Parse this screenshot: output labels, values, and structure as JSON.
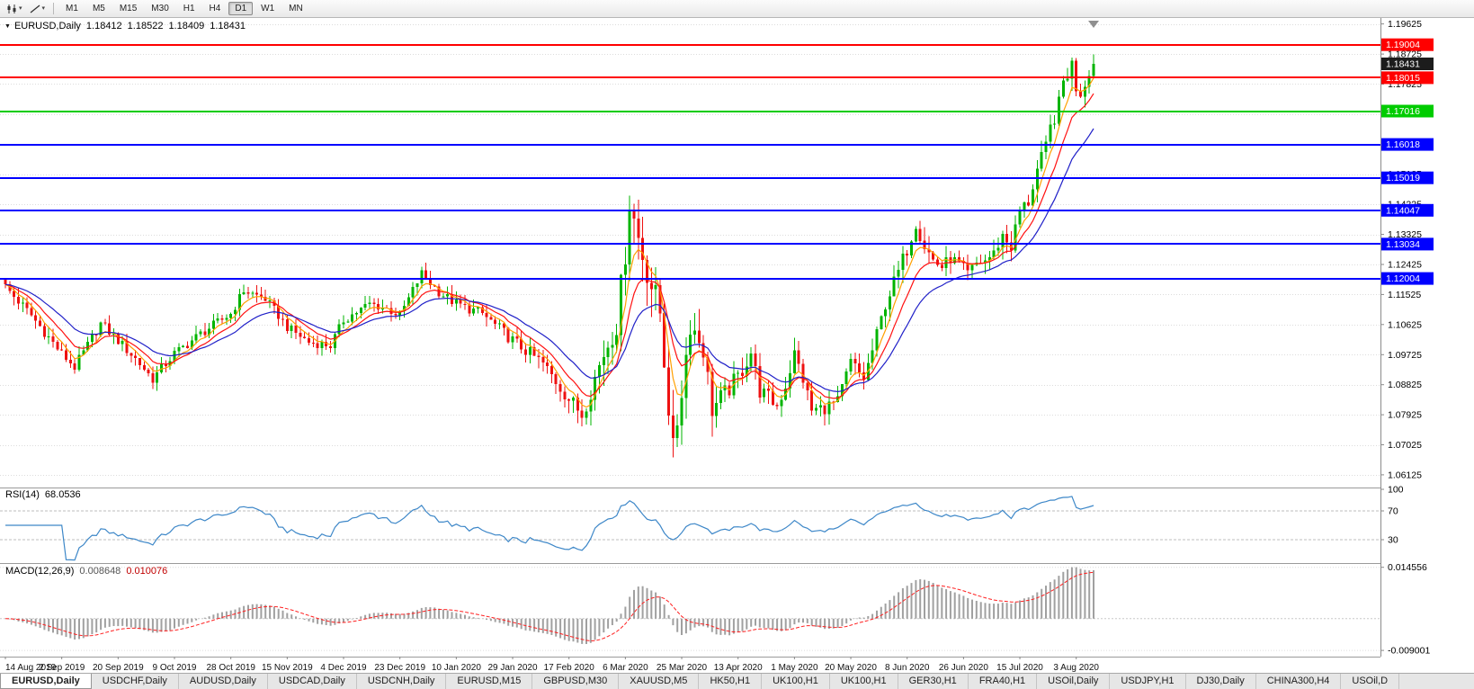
{
  "toolbar": {
    "chart_type_button": {
      "caret": "▾"
    },
    "draw_tool_button": {
      "caret": "▾"
    },
    "timeframes": [
      "M1",
      "M5",
      "M15",
      "M30",
      "H1",
      "H4",
      "D1",
      "W1",
      "MN"
    ],
    "active_timeframe": "D1"
  },
  "chart_header": {
    "collapse_icon": "▼",
    "symbol": "EURUSD,Daily",
    "open": "1.18412",
    "high": "1.18522",
    "low": "1.18409",
    "close": "1.18431"
  },
  "indicators": {
    "rsi": {
      "label": "RSI(14)",
      "value": "68.0536"
    },
    "macd": {
      "label": "MACD(12,26,9)",
      "value1": "0.008648",
      "value2": "0.010076"
    }
  },
  "tabs": {
    "active": "EURUSD,Daily",
    "items": [
      "EURUSD,Daily",
      "USDCHF,Daily",
      "AUDUSD,Daily",
      "USDCAD,Daily",
      "USDCNH,Daily",
      "EURUSD,M15",
      "GBPUSD,M30",
      "XAUUSD,M5",
      "HK50,H1",
      "UK100,H1",
      "UK100,H1",
      "GER30,H1",
      "FRA40,H1",
      "USOil,Daily",
      "USDJPY,H1",
      "DJ30,Daily",
      "CHINA300,H4",
      "USOil,D"
    ]
  },
  "chart_data": {
    "type": "candlestick",
    "symbol": "EURUSD",
    "timeframe": "Daily",
    "ohlc_current": {
      "open": 1.18412,
      "high": 1.18522,
      "low": 1.18409,
      "close": 1.18431
    },
    "price_axis": {
      "min": 1.058,
      "max": 1.1975,
      "ticks": [
        "1.19625",
        "1.18725",
        "1.17825",
        "1.16925",
        "1.16025",
        "1.15125",
        "1.14225",
        "1.13325",
        "1.12425",
        "1.11525",
        "1.10625",
        "1.09725",
        "1.08825",
        "1.07925",
        "1.07025",
        "1.06125"
      ]
    },
    "levels": [
      {
        "price": 1.19004,
        "label": "1.19004",
        "color": "#ff0000"
      },
      {
        "price": 1.18015,
        "label": "1.18015",
        "color": "#ff0000"
      },
      {
        "price": 1.17016,
        "label": "1.17016",
        "color": "#00cc00"
      },
      {
        "price": 1.16018,
        "label": "1.16018",
        "color": "#0000ff"
      },
      {
        "price": 1.15019,
        "label": "1.15019",
        "color": "#0000ff"
      },
      {
        "price": 1.14047,
        "label": "1.14047",
        "color": "#0000ff"
      },
      {
        "price": 1.13034,
        "label": "1.13034",
        "color": "#0000ff"
      },
      {
        "price": 1.12004,
        "label": "1.12004",
        "color": "#0000ff"
      }
    ],
    "current_price": {
      "value": 1.18431,
      "label": "1.18431",
      "color": "#1c1c1c"
    },
    "candle_count": 252,
    "candle_colors": {
      "up": "#00b400",
      "down": "#ee1111"
    },
    "price_path_anchors": [
      [
        0,
        1.1175
      ],
      [
        6,
        1.109
      ],
      [
        13,
        1.0975
      ],
      [
        16,
        1.0935
      ],
      [
        22,
        1.1065
      ],
      [
        26,
        1.1015
      ],
      [
        30,
        1.096
      ],
      [
        34,
        1.09
      ],
      [
        39,
        1.0975
      ],
      [
        45,
        1.1035
      ],
      [
        52,
        1.1095
      ],
      [
        55,
        1.1165
      ],
      [
        60,
        1.114
      ],
      [
        65,
        1.1055
      ],
      [
        70,
        1.101
      ],
      [
        75,
        1.1
      ],
      [
        78,
        1.1075
      ],
      [
        84,
        1.1125
      ],
      [
        88,
        1.111
      ],
      [
        91,
        1.109
      ],
      [
        96,
        1.1215
      ],
      [
        100,
        1.116
      ],
      [
        104,
        1.1125
      ],
      [
        110,
        1.1095
      ],
      [
        117,
        1.1015
      ],
      [
        124,
        1.0945
      ],
      [
        130,
        1.084
      ],
      [
        133,
        1.0795
      ],
      [
        138,
        1.0975
      ],
      [
        141,
        1.1065
      ],
      [
        143,
        1.128
      ],
      [
        144,
        1.143
      ],
      [
        147,
        1.127
      ],
      [
        149,
        1.118
      ],
      [
        151,
        1.11
      ],
      [
        154,
        1.068
      ],
      [
        156,
        1.087
      ],
      [
        158,
        1.107
      ],
      [
        161,
        1.099
      ],
      [
        163,
        1.081
      ],
      [
        166,
        1.0855
      ],
      [
        169,
        1.0905
      ],
      [
        172,
        1.098
      ],
      [
        174,
        1.0865
      ],
      [
        178,
        1.082
      ],
      [
        180,
        1.088
      ],
      [
        182,
        1.0975
      ],
      [
        184,
        1.09
      ],
      [
        186,
        1.0805
      ],
      [
        189,
        1.0815
      ],
      [
        192,
        1.083
      ],
      [
        195,
        1.095
      ],
      [
        198,
        1.09
      ],
      [
        200,
        1.0985
      ],
      [
        203,
        1.1125
      ],
      [
        206,
        1.122
      ],
      [
        208,
        1.129
      ],
      [
        210,
        1.137
      ],
      [
        212,
        1.13
      ],
      [
        214,
        1.1255
      ],
      [
        216,
        1.1235
      ],
      [
        218,
        1.126
      ],
      [
        220,
        1.1245
      ],
      [
        222,
        1.1215
      ],
      [
        224,
        1.1245
      ],
      [
        226,
        1.1255
      ],
      [
        228,
        1.1275
      ],
      [
        230,
        1.133
      ],
      [
        232,
        1.1295
      ],
      [
        234,
        1.1405
      ],
      [
        236,
        1.143
      ],
      [
        238,
        1.1525
      ],
      [
        240,
        1.159
      ],
      [
        241,
        1.165
      ],
      [
        243,
        1.172
      ],
      [
        244,
        1.179
      ],
      [
        246,
        1.184
      ],
      [
        247,
        1.1775
      ],
      [
        248,
        1.176
      ],
      [
        249,
        1.1785
      ],
      [
        250,
        1.1825
      ],
      [
        251,
        1.18431
      ]
    ],
    "volatility_anchors": [
      [
        0,
        0.0032
      ],
      [
        60,
        0.0028
      ],
      [
        100,
        0.0028
      ],
      [
        130,
        0.0045
      ],
      [
        142,
        0.0085
      ],
      [
        150,
        0.0095
      ],
      [
        158,
        0.0085
      ],
      [
        166,
        0.006
      ],
      [
        180,
        0.0045
      ],
      [
        200,
        0.004
      ],
      [
        210,
        0.005
      ],
      [
        220,
        0.0032
      ],
      [
        235,
        0.0042
      ],
      [
        246,
        0.0055
      ],
      [
        251,
        0.004
      ]
    ],
    "moving_averages": [
      {
        "name": "fast-ema",
        "period": 5,
        "color": "#ffa000"
      },
      {
        "name": "medium-ema",
        "period": 10,
        "color": "#ff1111"
      },
      {
        "name": "slow-ema",
        "period": 20,
        "color": "#2020c8"
      }
    ],
    "x_axis": {
      "tick_indices": [
        0,
        13,
        26,
        39,
        52,
        65,
        78,
        91,
        104,
        117,
        130,
        143,
        156,
        169,
        182,
        195,
        208,
        221,
        234,
        247
      ],
      "tick_labels": [
        "14 Aug 2019",
        "2 Sep 2019",
        "20 Sep 2019",
        "9 Oct 2019",
        "28 Oct 2019",
        "15 Nov 2019",
        "4 Dec 2019",
        "23 Dec 2019",
        "10 Jan 2020",
        "29 Jan 2020",
        "17 Feb 2020",
        "6 Mar 2020",
        "25 Mar 2020",
        "13 Apr 2020",
        "1 May 2020",
        "20 May 2020",
        "8 Jun 2020",
        "26 Jun 2020",
        "15 Jul 2020",
        "3 Aug 2020"
      ]
    },
    "rsi_panel": {
      "label": "RSI(14)",
      "period": 14,
      "value": 68.0536,
      "color": "#3d87c8",
      "levels": [
        70,
        30
      ],
      "axis": [
        {
          "value": 100,
          "label": "100"
        },
        {
          "value": 70,
          "label": "70"
        },
        {
          "value": 30,
          "label": "30"
        }
      ]
    },
    "macd_panel": {
      "label": "MACD(12,26,9)",
      "fast": 12,
      "slow": 26,
      "signal": 9,
      "macd_value": 0.008648,
      "signal_value": 0.010076,
      "hist_color": "#a0a0a0",
      "signal_color": "#ff2020",
      "range": [
        -0.01,
        0.015
      ],
      "axis": [
        {
          "value": 0.014556,
          "label": "0.014556"
        },
        {
          "value": -0.009001,
          "label": "-0.009001"
        }
      ]
    }
  }
}
